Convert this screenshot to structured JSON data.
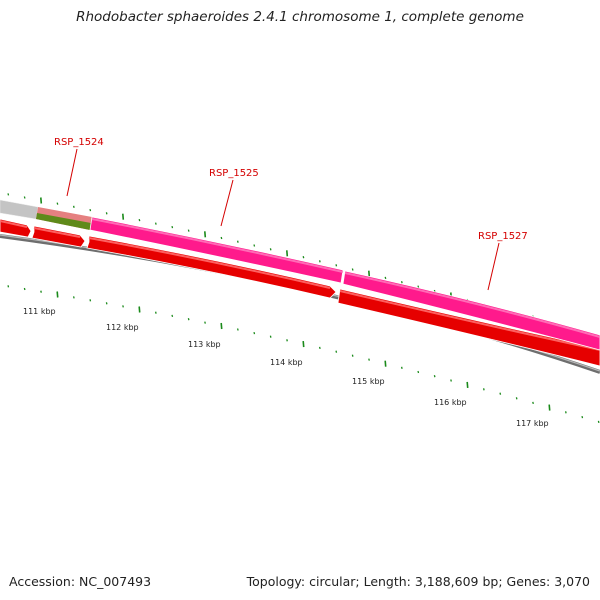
{
  "title": "Rhodobacter sphaeroides 2.4.1 chromosome 1, complete genome",
  "footer": {
    "accession": "Accession: NC_007493",
    "summary": "Topology: circular; Length: 3,188,609 bp; Genes: 3,070"
  },
  "colors": {
    "backbone": "#8a8a8a",
    "cds_forward": "#ff1a8c",
    "cds_reverse": "#ff0000",
    "tick": "#1a8a1a",
    "label": "#d40000"
  },
  "gene_labels": [
    "RSP_1524",
    "RSP_1525",
    "RSP_1527"
  ],
  "scale_labels": [
    "111 kbp",
    "112 kbp",
    "113 kbp",
    "114 kbp",
    "115 kbp",
    "116 kbp",
    "117 kbp"
  ]
}
